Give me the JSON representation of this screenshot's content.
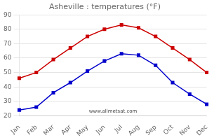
{
  "chart_data": {
    "type": "line",
    "title": "Asheville : temperatures (°F)",
    "categories": [
      "Jan",
      "Feb",
      "Mar",
      "Apr",
      "May",
      "Jun",
      "Jul",
      "Aug",
      "Sep",
      "Oct",
      "Nov",
      "Dec"
    ],
    "series": [
      {
        "color": "#cc0000",
        "values": [
          46,
          50,
          59,
          67,
          75,
          80,
          83,
          81,
          75,
          67,
          59,
          50
        ]
      },
      {
        "color": "#0000cc",
        "values": [
          24,
          26,
          36,
          43,
          51,
          58,
          63,
          62,
          55,
          43,
          35,
          28
        ]
      }
    ],
    "ylim": [
      20,
      90
    ],
    "yticks": [
      20,
      30,
      40,
      50,
      60,
      70,
      80,
      90
    ],
    "grid": "y",
    "marker": "square",
    "line_style": "solid",
    "annotation": "www.allmetsat.com"
  }
}
